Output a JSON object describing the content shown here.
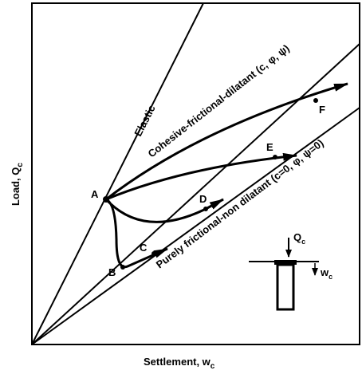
{
  "axes": {
    "y_label": {
      "text": "Load, Q",
      "sub": "c"
    },
    "x_label": {
      "text": "Settlement, w",
      "sub": "c"
    }
  },
  "lines": {
    "elastic": "Elastic",
    "cohesive": "Cohesive-frictional-dilatant (c, φ, ψ)",
    "frictional": "Purely frictional-non dilatant (c=0, φ, ψ=0)"
  },
  "points": [
    "A",
    "B",
    "C",
    "D",
    "E",
    "F"
  ],
  "inset": {
    "load": {
      "text": "Q",
      "sub": "c"
    },
    "settlement": {
      "text": "w",
      "sub": "c"
    }
  }
}
